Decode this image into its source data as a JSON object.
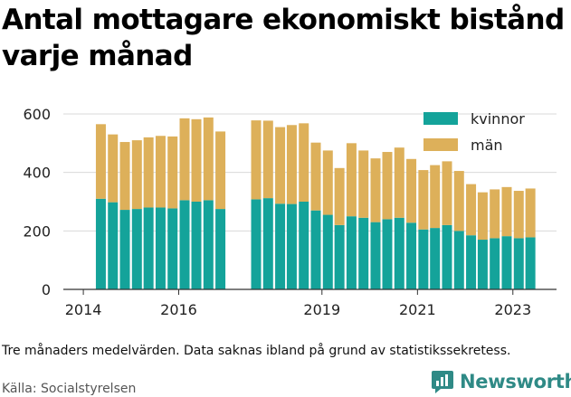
{
  "title": "Antal mottagare ekonomiskt bistånd varje månad",
  "note": "Tre månaders medelvärden. Data saknas ibland på grund av statistikssekretess.",
  "source": "Källa: Socialstyrelsen",
  "brand": {
    "name": "Newsworthy",
    "color": "#2f8a86"
  },
  "colors": {
    "kvinnor": "#14a39a",
    "man": "#ddb05a"
  },
  "chart_data": {
    "type": "bar",
    "stacked": true,
    "title": "",
    "xlabel": "",
    "ylabel": "",
    "ylim": [
      0,
      600
    ],
    "yticks": [
      0,
      200,
      400,
      600
    ],
    "xticks": [
      "2014",
      "2016",
      "2019",
      "2021",
      "2023"
    ],
    "grid": true,
    "legend": "top-right",
    "series": [
      {
        "name": "kvinnor",
        "color": "#14a39a"
      },
      {
        "name": "män",
        "color": "#ddb05a"
      }
    ],
    "points": [
      {
        "t": "2014-05",
        "kvinnor": 310,
        "man": 255
      },
      {
        "t": "2014-08",
        "kvinnor": 298,
        "man": 232
      },
      {
        "t": "2014-11",
        "kvinnor": 272,
        "man": 232
      },
      {
        "t": "2015-02",
        "kvinnor": 275,
        "man": 235
      },
      {
        "t": "2015-05",
        "kvinnor": 280,
        "man": 240
      },
      {
        "t": "2015-08",
        "kvinnor": 280,
        "man": 245
      },
      {
        "t": "2015-11",
        "kvinnor": 277,
        "man": 246
      },
      {
        "t": "2016-02",
        "kvinnor": 305,
        "man": 280
      },
      {
        "t": "2016-05",
        "kvinnor": 300,
        "man": 282
      },
      {
        "t": "2016-08",
        "kvinnor": 305,
        "man": 283
      },
      {
        "t": "2016-11",
        "kvinnor": 275,
        "man": 265
      },
      {
        "t": "2017-08",
        "kvinnor": 308,
        "man": 270
      },
      {
        "t": "2017-11",
        "kvinnor": 312,
        "man": 265
      },
      {
        "t": "2018-02",
        "kvinnor": 293,
        "man": 262
      },
      {
        "t": "2018-05",
        "kvinnor": 292,
        "man": 270
      },
      {
        "t": "2018-08",
        "kvinnor": 300,
        "man": 268
      },
      {
        "t": "2018-11",
        "kvinnor": 270,
        "man": 232
      },
      {
        "t": "2019-02",
        "kvinnor": 255,
        "man": 220
      },
      {
        "t": "2019-05",
        "kvinnor": 220,
        "man": 195
      },
      {
        "t": "2019-08",
        "kvinnor": 250,
        "man": 250
      },
      {
        "t": "2019-11",
        "kvinnor": 245,
        "man": 230
      },
      {
        "t": "2020-02",
        "kvinnor": 230,
        "man": 218
      },
      {
        "t": "2020-05",
        "kvinnor": 240,
        "man": 230
      },
      {
        "t": "2020-08",
        "kvinnor": 245,
        "man": 240
      },
      {
        "t": "2020-11",
        "kvinnor": 228,
        "man": 218
      },
      {
        "t": "2021-02",
        "kvinnor": 205,
        "man": 203
      },
      {
        "t": "2021-05",
        "kvinnor": 210,
        "man": 215
      },
      {
        "t": "2021-08",
        "kvinnor": 220,
        "man": 218
      },
      {
        "t": "2021-11",
        "kvinnor": 200,
        "man": 205
      },
      {
        "t": "2022-02",
        "kvinnor": 185,
        "man": 175
      },
      {
        "t": "2022-05",
        "kvinnor": 170,
        "man": 162
      },
      {
        "t": "2022-08",
        "kvinnor": 175,
        "man": 167
      },
      {
        "t": "2022-11",
        "kvinnor": 182,
        "man": 168
      },
      {
        "t": "2023-02",
        "kvinnor": 175,
        "man": 162
      },
      {
        "t": "2023-05",
        "kvinnor": 178,
        "man": 167
      }
    ]
  }
}
